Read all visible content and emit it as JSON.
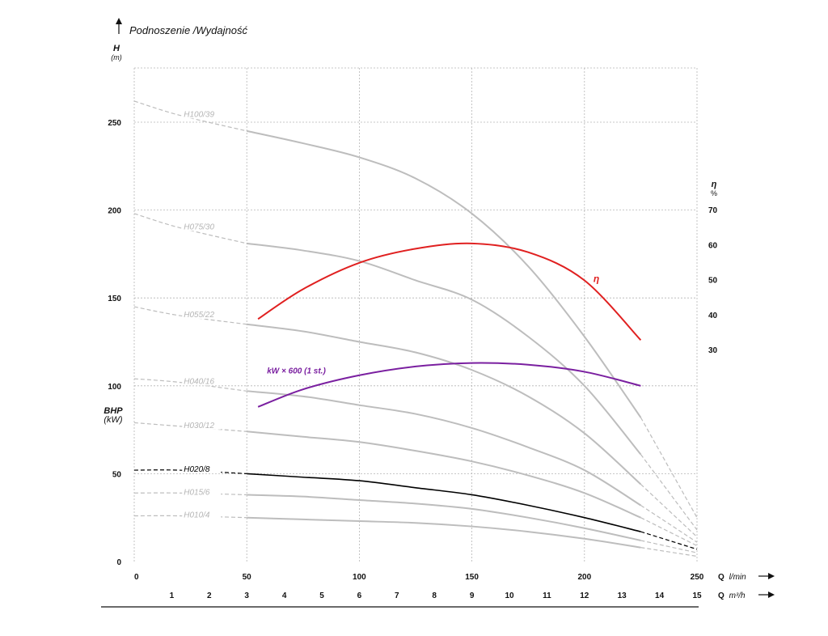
{
  "chart_data": {
    "type": "line",
    "title": "Podnoszenie /Wydajność",
    "y_axis": {
      "label": "H",
      "unit": "(m)",
      "range": [
        0,
        285
      ],
      "ticks": [
        0,
        50,
        100,
        150,
        200,
        250
      ]
    },
    "bhp_axis": {
      "label": "BHP",
      "unit": "(kW)"
    },
    "eta_axis": {
      "label": "η",
      "unit": "%",
      "ticks": [
        30,
        40,
        50,
        60,
        70
      ]
    },
    "x_axis_lmin": {
      "label": "Q",
      "unit": "l/min",
      "range": [
        0,
        250
      ],
      "ticks": [
        0,
        50,
        100,
        150,
        200,
        250
      ]
    },
    "x_axis_m3h": {
      "label": "Q",
      "unit": "m³/h",
      "ticks": [
        1,
        2,
        3,
        4,
        5,
        6,
        7,
        8,
        9,
        10,
        11,
        12,
        13,
        14,
        15
      ]
    },
    "grid": true,
    "series": [
      {
        "name": "H100/39",
        "color": "#bdbdbd",
        "dashed_start": [
          [
            0,
            262
          ],
          [
            20,
            254
          ],
          [
            50,
            245
          ]
        ],
        "points": [
          [
            50,
            245
          ],
          [
            75,
            238
          ],
          [
            100,
            230
          ],
          [
            125,
            218
          ],
          [
            150,
            198
          ],
          [
            175,
            168
          ],
          [
            200,
            128
          ],
          [
            225,
            82
          ]
        ],
        "dashed_end": [
          [
            225,
            82
          ],
          [
            250,
            25
          ]
        ]
      },
      {
        "name": "H075/30",
        "color": "#bdbdbd",
        "dashed_start": [
          [
            0,
            198
          ],
          [
            20,
            190
          ],
          [
            50,
            181
          ]
        ],
        "points": [
          [
            50,
            181
          ],
          [
            75,
            177
          ],
          [
            100,
            171
          ],
          [
            125,
            160
          ],
          [
            150,
            149
          ],
          [
            175,
            128
          ],
          [
            200,
            100
          ],
          [
            225,
            61
          ]
        ],
        "dashed_end": [
          [
            225,
            61
          ],
          [
            250,
            18
          ]
        ]
      },
      {
        "name": "H055/22",
        "color": "#bdbdbd",
        "dashed_start": [
          [
            0,
            145
          ],
          [
            20,
            140
          ],
          [
            50,
            135
          ]
        ],
        "points": [
          [
            50,
            135
          ],
          [
            75,
            131
          ],
          [
            100,
            125
          ],
          [
            125,
            119
          ],
          [
            150,
            109
          ],
          [
            175,
            94
          ],
          [
            200,
            73
          ],
          [
            225,
            44
          ]
        ],
        "dashed_end": [
          [
            225,
            44
          ],
          [
            250,
            14
          ]
        ]
      },
      {
        "name": "H040/16",
        "color": "#bdbdbd",
        "dashed_start": [
          [
            0,
            104
          ],
          [
            20,
            102
          ],
          [
            50,
            97
          ]
        ],
        "points": [
          [
            50,
            97
          ],
          [
            75,
            94
          ],
          [
            100,
            89
          ],
          [
            125,
            84
          ],
          [
            150,
            76
          ],
          [
            175,
            65
          ],
          [
            200,
            52
          ],
          [
            225,
            32
          ]
        ],
        "dashed_end": [
          [
            225,
            32
          ],
          [
            250,
            11
          ]
        ]
      },
      {
        "name": "H030/12",
        "color": "#bdbdbd",
        "dashed_start": [
          [
            0,
            79
          ],
          [
            20,
            77
          ],
          [
            50,
            74
          ]
        ],
        "points": [
          [
            50,
            74
          ],
          [
            75,
            71
          ],
          [
            100,
            68
          ],
          [
            125,
            63
          ],
          [
            150,
            57
          ],
          [
            175,
            49
          ],
          [
            200,
            39
          ],
          [
            225,
            25
          ]
        ],
        "dashed_end": [
          [
            225,
            25
          ],
          [
            250,
            9
          ]
        ]
      },
      {
        "name": "H020/8",
        "color": "#000000",
        "dashed_start": [
          [
            0,
            52
          ],
          [
            20,
            52
          ],
          [
            50,
            50
          ]
        ],
        "points": [
          [
            50,
            50
          ],
          [
            75,
            48
          ],
          [
            100,
            46
          ],
          [
            125,
            42
          ],
          [
            150,
            38
          ],
          [
            175,
            32
          ],
          [
            200,
            25
          ],
          [
            225,
            17
          ]
        ],
        "dashed_end": [
          [
            225,
            17
          ],
          [
            250,
            7
          ]
        ]
      },
      {
        "name": "H015/6",
        "color": "#bdbdbd",
        "dashed_start": [
          [
            0,
            39
          ],
          [
            20,
            39
          ],
          [
            50,
            38
          ]
        ],
        "points": [
          [
            50,
            38
          ],
          [
            75,
            37
          ],
          [
            100,
            35
          ],
          [
            125,
            33
          ],
          [
            150,
            30
          ],
          [
            175,
            25
          ],
          [
            200,
            19
          ],
          [
            225,
            12
          ]
        ],
        "dashed_end": [
          [
            225,
            12
          ],
          [
            250,
            5
          ]
        ]
      },
      {
        "name": "H010/4",
        "color": "#bdbdbd",
        "dashed_start": [
          [
            0,
            26
          ],
          [
            20,
            26
          ],
          [
            50,
            25
          ]
        ],
        "points": [
          [
            50,
            25
          ],
          [
            75,
            24
          ],
          [
            100,
            23
          ],
          [
            125,
            22
          ],
          [
            150,
            20
          ],
          [
            175,
            17
          ],
          [
            200,
            13
          ],
          [
            225,
            8
          ]
        ],
        "dashed_end": [
          [
            225,
            8
          ],
          [
            250,
            3
          ]
        ]
      }
    ],
    "efficiency": {
      "name": "η",
      "color": "#e02020",
      "points": [
        [
          55,
          138
        ],
        [
          75,
          155
        ],
        [
          100,
          170
        ],
        [
          125,
          178
        ],
        [
          150,
          181
        ],
        [
          175,
          176
        ],
        [
          200,
          160
        ],
        [
          225,
          126
        ]
      ]
    },
    "power": {
      "name": "kW × 600 (1 st.)",
      "color": "#7a1fa0",
      "points": [
        [
          55,
          88
        ],
        [
          75,
          98
        ],
        [
          100,
          106
        ],
        [
          125,
          111
        ],
        [
          150,
          113
        ],
        [
          175,
          112
        ],
        [
          200,
          108
        ],
        [
          225,
          100
        ]
      ]
    }
  }
}
